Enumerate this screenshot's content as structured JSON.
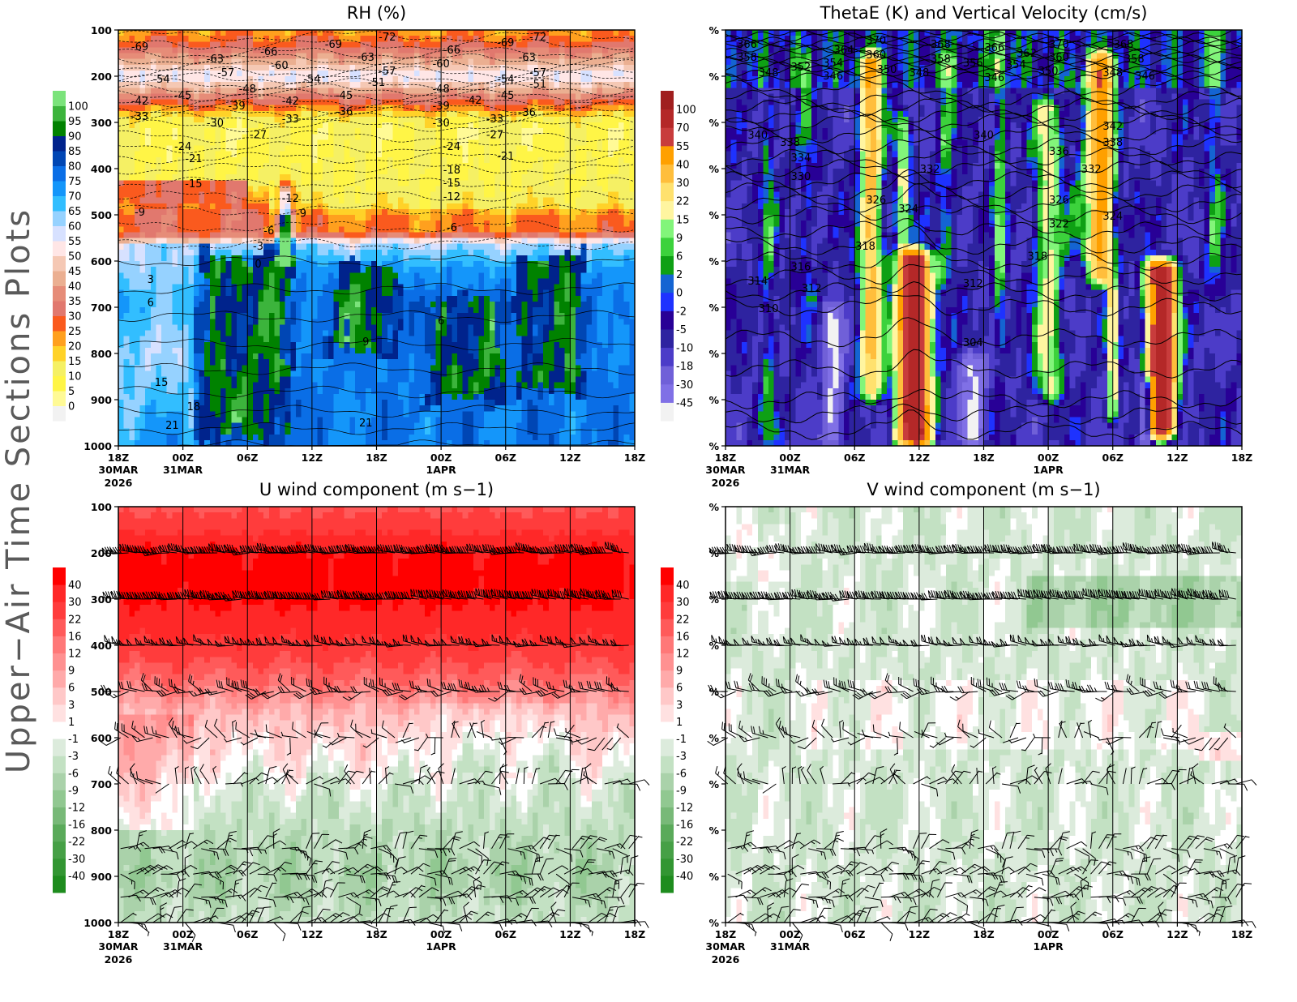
{
  "page": {
    "side_title": "Upper−Air Time Sections Plots"
  },
  "chart_data": [
    {
      "type": "heatmap",
      "title": "RH (%)",
      "xticks": [
        "18Z",
        "00Z",
        "06Z",
        "12Z",
        "18Z",
        "00Z",
        "06Z",
        "12Z",
        "18Z"
      ],
      "xtick_dates": [
        "30MAR",
        "31MAR",
        "",
        "",
        "",
        "1APR",
        "",
        "",
        ""
      ],
      "xtick_year": "2026",
      "yticks": [
        "100",
        "200",
        "300",
        "400",
        "500",
        "600",
        "700",
        "800",
        "900",
        "1000"
      ],
      "ylim": [
        1000,
        100
      ],
      "y_scale": "linear pressure",
      "levels": [
        0,
        5,
        10,
        15,
        20,
        25,
        30,
        35,
        40,
        45,
        50,
        55,
        60,
        65,
        70,
        75,
        80,
        85,
        90,
        95,
        100
      ],
      "colors": [
        "#f2f2f2",
        "#fffa96",
        "#fff546",
        "#f5f064",
        "#ffd228",
        "#ffa01e",
        "#fa5a1e",
        "#e1786e",
        "#e68c78",
        "#ebaf91",
        "#f5c8b4",
        "#ffe6e6",
        "#d7e1ff",
        "#96d2ff",
        "#32beff",
        "#1496fa",
        "#0a6ee6",
        "#0046b4",
        "#00238c",
        "#008200",
        "#3cb43c",
        "#7be37b"
      ],
      "contour_lines": "temperature (dashed below 0)",
      "contour_labels": [
        [
          "-69",
          "30MAR",
          20,
          135
        ],
        [
          "-54",
          "30MAR",
          22,
          205
        ],
        [
          "-42",
          "30MAR",
          20,
          253
        ],
        [
          "-33",
          "30MAR",
          20,
          286
        ],
        [
          "-45",
          "31MAR",
          0,
          240
        ],
        [
          "-63",
          "31MAR",
          3,
          161
        ],
        [
          "-57",
          "31MAR",
          4,
          191
        ],
        [
          "-66",
          "31MAR",
          8,
          146
        ],
        [
          "-60",
          "31MAR",
          9,
          175
        ],
        [
          "-48",
          "31MAR",
          6,
          226
        ],
        [
          "-39",
          "31MAR",
          5,
          263
        ],
        [
          "-30",
          "31MAR",
          3,
          300
        ],
        [
          "-54",
          "31MAR",
          12,
          205
        ],
        [
          "-42",
          "31MAR",
          10,
          253
        ],
        [
          "-33",
          "31MAR",
          10,
          291
        ],
        [
          "-27",
          "31MAR",
          7,
          325
        ],
        [
          "-69",
          "31MAR",
          14,
          130
        ],
        [
          "-45",
          "31MAR",
          15,
          240
        ],
        [
          "-36",
          "31MAR",
          15,
          275
        ],
        [
          "-63",
          "31MAR",
          17,
          158
        ],
        [
          "-51",
          "31MAR",
          18,
          212
        ],
        [
          "-57",
          "31MAR",
          19,
          188
        ],
        [
          "-72",
          "31MAR",
          19,
          114
        ],
        [
          "-66",
          "1APR",
          1,
          142
        ],
        [
          "-60",
          "1APR",
          0,
          172
        ],
        [
          "-48",
          "1APR",
          0,
          226
        ],
        [
          "-39",
          "1APR",
          0,
          263
        ],
        [
          "-30",
          "1APR",
          0,
          300
        ],
        [
          "-42",
          "1APR",
          3,
          251
        ],
        [
          "-33",
          "1APR",
          5,
          291
        ],
        [
          "-27",
          "1APR",
          5,
          325
        ],
        [
          "-69",
          "1APR",
          6,
          126
        ],
        [
          "-63",
          "1APR",
          8,
          158
        ],
        [
          "-72",
          "1APR",
          9,
          114
        ],
        [
          "-54",
          "1APR",
          6,
          205
        ],
        [
          "-45",
          "1APR",
          6,
          240
        ],
        [
          "-57",
          "1APR",
          9,
          191
        ],
        [
          "-51",
          "1APR",
          9,
          216
        ],
        [
          "-36",
          "1APR",
          8,
          277
        ],
        [
          "-24",
          "1APR",
          1,
          351
        ],
        [
          "-18",
          "1APR",
          1,
          402
        ],
        [
          "-15",
          "1APR",
          1,
          430
        ],
        [
          "-12",
          "1APR",
          1,
          460
        ],
        [
          "-6",
          "1APR",
          1,
          526
        ],
        [
          "-21",
          "1APR",
          6,
          372
        ],
        [
          "-24",
          "31MAR",
          0,
          351
        ],
        [
          "-21",
          "31MAR",
          1,
          377
        ],
        [
          "-15",
          "31MAR",
          1,
          432
        ],
        [
          "-9",
          "30MAR",
          20,
          493
        ],
        [
          "-12",
          "31MAR",
          10,
          463
        ],
        [
          "-9",
          "31MAR",
          11,
          496
        ],
        [
          "-6",
          "31MAR",
          8,
          533
        ],
        [
          "-3",
          "31MAR",
          7,
          567
        ],
        [
          "0",
          "31MAR",
          7,
          605
        ],
        [
          "3",
          "30MAR",
          21,
          639
        ],
        [
          "6",
          "30MAR",
          21,
          689
        ],
        [
          "9",
          "31MAR",
          17,
          774
        ],
        [
          "6",
          "1APR",
          0,
          728
        ],
        [
          "15",
          "30MAR",
          22,
          861
        ],
        [
          "18",
          "31MAR",
          1,
          914
        ],
        [
          "21",
          "30MAR",
          23,
          954
        ],
        [
          "21",
          "31MAR",
          17,
          949
        ]
      ]
    },
    {
      "type": "heatmap",
      "title": "ThetaE (K) and Vertical Velocity (cm/s)",
      "xticks": [
        "18Z",
        "00Z",
        "06Z",
        "12Z",
        "18Z",
        "00Z",
        "06Z",
        "12Z",
        "18Z"
      ],
      "xtick_dates": [
        "30MAR",
        "31MAR",
        "",
        "",
        "",
        "1APR",
        "",
        "",
        ""
      ],
      "xtick_year": "2026",
      "yticks": [
        "%",
        "%",
        "%",
        "%",
        "%",
        "%",
        "%",
        "%",
        "%",
        "%"
      ],
      "ylim": [
        1000,
        100
      ],
      "levels": [
        -45,
        -30,
        -18,
        -10,
        -5,
        -2,
        0,
        2,
        6,
        9,
        15,
        22,
        30,
        40,
        55,
        70,
        100
      ],
      "colors": [
        "#f2f2f2",
        "#8070e6",
        "#7060d8",
        "#4c3cc8",
        "#2e23a0",
        "#280096",
        "#1e32ff",
        "#1464d2",
        "#0ea014",
        "#3cd23c",
        "#82f57a",
        "#fff5a0",
        "#ffe16e",
        "#ffbe3c",
        "#ffa000",
        "#c83c3c",
        "#b42828",
        "#a01e1e"
      ],
      "contour_lines": "equivalent potential temperature (K)",
      "contour_labels": [
        [
          "366",
          "30MAR",
          20,
          130
        ],
        [
          "358",
          "30MAR",
          20,
          158
        ],
        [
          "348",
          "30MAR",
          22,
          191
        ],
        [
          "352",
          "31MAR",
          1,
          179
        ],
        [
          "364",
          "31MAR",
          5,
          142
        ],
        [
          "354",
          "31MAR",
          4,
          170
        ],
        [
          "346",
          "31MAR",
          4,
          198
        ],
        [
          "370",
          "31MAR",
          8,
          121
        ],
        [
          "360",
          "31MAR",
          8,
          153
        ],
        [
          "350",
          "31MAR",
          9,
          184
        ],
        [
          "348",
          "31MAR",
          12,
          191
        ],
        [
          "368",
          "31MAR",
          14,
          130
        ],
        [
          "358",
          "31MAR",
          14,
          161
        ],
        [
          "356",
          "31MAR",
          17,
          170
        ],
        [
          "346",
          "31MAR",
          19,
          202
        ],
        [
          "366",
          "31MAR",
          19,
          137
        ],
        [
          "354",
          "31MAR",
          21,
          174
        ],
        [
          "362",
          "31MAR",
          22,
          149
        ],
        [
          "370",
          "1APR",
          1,
          130
        ],
        [
          "360",
          "1APR",
          1,
          158
        ],
        [
          "350",
          "1APR",
          0,
          188
        ],
        [
          "368",
          "1APR",
          7,
          130
        ],
        [
          "358",
          "1APR",
          8,
          161
        ],
        [
          "348",
          "1APR",
          6,
          191
        ],
        [
          "346",
          "1APR",
          9,
          198
        ],
        [
          "340",
          "30MAR",
          21,
          326
        ],
        [
          "338",
          "31MAR",
          0,
          342
        ],
        [
          "334",
          "31MAR",
          1,
          375
        ],
        [
          "330",
          "31MAR",
          1,
          416
        ],
        [
          "326",
          "31MAR",
          8,
          467
        ],
        [
          "324",
          "31MAR",
          11,
          486
        ],
        [
          "332",
          "31MAR",
          13,
          400
        ],
        [
          "318",
          "31MAR",
          7,
          567
        ],
        [
          "316",
          "31MAR",
          1,
          611
        ],
        [
          "314",
          "30MAR",
          21,
          642
        ],
        [
          "312",
          "31MAR",
          2,
          658
        ],
        [
          "310",
          "30MAR",
          22,
          702
        ],
        [
          "304",
          "31MAR",
          17,
          775
        ],
        [
          "312",
          "31MAR",
          17,
          647
        ],
        [
          "340",
          "31MAR",
          18,
          326
        ],
        [
          "336",
          "1APR",
          1,
          361
        ],
        [
          "332",
          "1APR",
          4,
          400
        ],
        [
          "326",
          "1APR",
          1,
          467
        ],
        [
          "322",
          "1APR",
          1,
          518
        ],
        [
          "324",
          "1APR",
          6,
          502
        ],
        [
          "318",
          "31MAR",
          23,
          589
        ],
        [
          "342",
          "1APR",
          6,
          307
        ],
        [
          "338",
          "1APR",
          6,
          342
        ]
      ]
    },
    {
      "type": "heatmap",
      "title": "U wind component (m s−1)",
      "xticks": [
        "18Z",
        "00Z",
        "06Z",
        "12Z",
        "18Z",
        "00Z",
        "06Z",
        "12Z",
        "18Z"
      ],
      "xtick_dates": [
        "30MAR",
        "31MAR",
        "",
        "",
        "",
        "1APR",
        "",
        "",
        ""
      ],
      "xtick_year": "2026",
      "yticks": [
        "100",
        "200",
        "300",
        "400",
        "500",
        "600",
        "700",
        "800",
        "900",
        "1000"
      ],
      "ylim": [
        1000,
        100
      ],
      "levels": [
        -40,
        -30,
        -22,
        -16,
        -12,
        -9,
        -6,
        -3,
        -1,
        1,
        3,
        6,
        9,
        12,
        16,
        22,
        30,
        40
      ],
      "colors": [
        "#1e8c1e",
        "#329632",
        "#46a046",
        "#5aaa5a",
        "#78b978",
        "#91c891",
        "#aad2aa",
        "#c3e1c3",
        "#dcebdc",
        "#ffffff",
        "#ffe1e1",
        "#ffc8c8",
        "#ffaaaa",
        "#ff9191",
        "#ff7878",
        "#ff5a5a",
        "#ff3c3c",
        "#ff2828",
        "#ff0000"
      ],
      "overlay": "wind barbs",
      "barb_levels": [
        200,
        300,
        400,
        500,
        600,
        700,
        840,
        895,
        945,
        1000
      ]
    },
    {
      "type": "heatmap",
      "title": "V wind component (m s−1)",
      "xticks": [
        "18Z",
        "00Z",
        "06Z",
        "12Z",
        "18Z",
        "00Z",
        "06Z",
        "12Z",
        "18Z"
      ],
      "xtick_dates": [
        "30MAR",
        "31MAR",
        "",
        "",
        "",
        "1APR",
        "",
        "",
        ""
      ],
      "xtick_year": "2026",
      "yticks": [
        "%",
        "%",
        "%",
        "%",
        "%",
        "%",
        "%",
        "%",
        "%",
        "%"
      ],
      "ylim": [
        1000,
        100
      ],
      "levels": [
        -40,
        -30,
        -22,
        -16,
        -12,
        -9,
        -6,
        -3,
        -1,
        1,
        3,
        6,
        9,
        12,
        16,
        22,
        30,
        40
      ],
      "colors": [
        "#1e8c1e",
        "#329632",
        "#46a046",
        "#5aaa5a",
        "#78b978",
        "#91c891",
        "#aad2aa",
        "#c3e1c3",
        "#dcebdc",
        "#ffffff",
        "#ffe1e1",
        "#ffc8c8",
        "#ffaaaa",
        "#ff9191",
        "#ff7878",
        "#ff5a5a",
        "#ff3c3c",
        "#ff2828",
        "#ff0000"
      ],
      "overlay": "wind barbs",
      "barb_levels": [
        200,
        300,
        400,
        500,
        600,
        700,
        840,
        895,
        945,
        1000
      ]
    }
  ]
}
